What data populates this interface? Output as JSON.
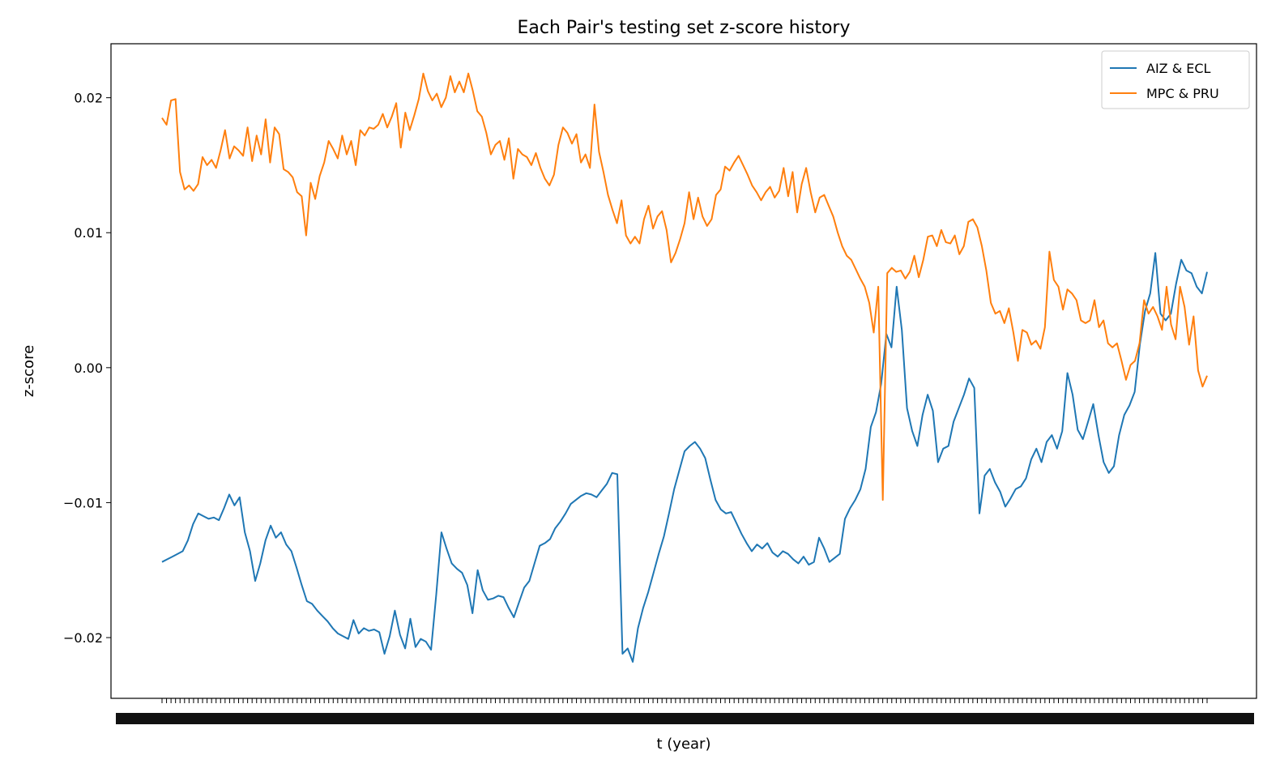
{
  "chart_data": {
    "type": "line",
    "title": "Each Pair's testing set z-score history",
    "xlabel": "t (year)",
    "ylabel": "z-score",
    "ylim": [
      -0.0245,
      0.024
    ],
    "yticks": [
      -0.02,
      -0.01,
      0.0,
      0.01,
      0.02
    ],
    "ytick_labels": [
      "−0.02",
      "−0.01",
      "0.00",
      "0.01",
      "0.02"
    ],
    "grid": false,
    "legend_position": "top-right",
    "series": [
      {
        "name": "AIZ & ECL",
        "color": "#1f77b4",
        "values": [
          -0.0144,
          -0.0142,
          -0.014,
          -0.0138,
          -0.0136,
          -0.0128,
          -0.0116,
          -0.0108,
          -0.011,
          -0.0112,
          -0.0111,
          -0.0113,
          -0.0104,
          -0.0094,
          -0.0102,
          -0.0096,
          -0.0122,
          -0.0136,
          -0.0158,
          -0.0145,
          -0.0128,
          -0.0117,
          -0.0126,
          -0.0122,
          -0.0131,
          -0.0136,
          -0.0148,
          -0.0161,
          -0.0173,
          -0.0175,
          -0.018,
          -0.0184,
          -0.0188,
          -0.0193,
          -0.0197,
          -0.0199,
          -0.0201,
          -0.0187,
          -0.0197,
          -0.0193,
          -0.0195,
          -0.0194,
          -0.0196,
          -0.0212,
          -0.0199,
          -0.018,
          -0.0198,
          -0.0208,
          -0.0186,
          -0.0207,
          -0.0201,
          -0.0203,
          -0.0209,
          -0.0168,
          -0.0122,
          -0.0134,
          -0.0145,
          -0.0149,
          -0.0152,
          -0.0161,
          -0.0182,
          -0.015,
          -0.0165,
          -0.0172,
          -0.0171,
          -0.0169,
          -0.017,
          -0.0178,
          -0.0185,
          -0.0174,
          -0.0163,
          -0.0158,
          -0.0145,
          -0.0132,
          -0.013,
          -0.0127,
          -0.0119,
          -0.0114,
          -0.0108,
          -0.0101,
          -0.0098,
          -0.0095,
          -0.0093,
          -0.0094,
          -0.0096,
          -0.0091,
          -0.0086,
          -0.0078,
          -0.0079,
          -0.0212,
          -0.0208,
          -0.0218,
          -0.0193,
          -0.0178,
          -0.0166,
          -0.0152,
          -0.0138,
          -0.0125,
          -0.0108,
          -0.009,
          -0.0076,
          -0.0062,
          -0.0058,
          -0.0055,
          -0.006,
          -0.0067,
          -0.0083,
          -0.0098,
          -0.0105,
          -0.0108,
          -0.0107,
          -0.0115,
          -0.0123,
          -0.013,
          -0.0136,
          -0.0131,
          -0.0134,
          -0.013,
          -0.0137,
          -0.014,
          -0.0136,
          -0.0138,
          -0.0142,
          -0.0145,
          -0.014,
          -0.0146,
          -0.0144,
          -0.0126,
          -0.0134,
          -0.0144,
          -0.0141,
          -0.0138,
          -0.0112,
          -0.0104,
          -0.0098,
          -0.009,
          -0.0075,
          -0.0044,
          -0.0033,
          -0.0012,
          0.0025,
          0.0015,
          0.006,
          0.0028,
          -0.003,
          -0.0047,
          -0.0058,
          -0.0035,
          -0.002,
          -0.0032,
          -0.007,
          -0.006,
          -0.0058,
          -0.004,
          -0.003,
          -0.002,
          -0.0008,
          -0.0015,
          -0.0108,
          -0.008,
          -0.0075,
          -0.0085,
          -0.0092,
          -0.0103,
          -0.0097,
          -0.009,
          -0.0088,
          -0.0082,
          -0.0068,
          -0.006,
          -0.007,
          -0.0055,
          -0.005,
          -0.006,
          -0.0047,
          -0.0004,
          -0.002,
          -0.0046,
          -0.0053,
          -0.004,
          -0.0027,
          -0.005,
          -0.007,
          -0.0078,
          -0.0073,
          -0.005,
          -0.0035,
          -0.0028,
          -0.0018,
          0.0017,
          0.0042,
          0.0055,
          0.0085,
          0.004,
          0.0035,
          0.004,
          0.0062,
          0.008,
          0.0072,
          0.007,
          0.006,
          0.0055,
          0.0071
        ]
      },
      {
        "name": "MPC & PRU",
        "color": "#ff7f0e",
        "values": [
          0.0185,
          0.018,
          0.0198,
          0.0199,
          0.0145,
          0.0132,
          0.0135,
          0.0131,
          0.0136,
          0.0156,
          0.015,
          0.0154,
          0.0148,
          0.0161,
          0.0176,
          0.0155,
          0.0164,
          0.0161,
          0.0157,
          0.0178,
          0.0153,
          0.0172,
          0.0158,
          0.0184,
          0.0152,
          0.0178,
          0.0173,
          0.0147,
          0.0145,
          0.0141,
          0.013,
          0.0127,
          0.0098,
          0.0137,
          0.0125,
          0.0142,
          0.0152,
          0.0168,
          0.0162,
          0.0155,
          0.0172,
          0.0158,
          0.0168,
          0.015,
          0.0176,
          0.0172,
          0.0178,
          0.0177,
          0.018,
          0.0188,
          0.0178,
          0.0186,
          0.0196,
          0.0163,
          0.0189,
          0.0176,
          0.0187,
          0.0199,
          0.0218,
          0.0205,
          0.0198,
          0.0203,
          0.0193,
          0.02,
          0.0216,
          0.0204,
          0.0212,
          0.0204,
          0.0218,
          0.0205,
          0.019,
          0.0186,
          0.0174,
          0.0158,
          0.0165,
          0.0168,
          0.0154,
          0.017,
          0.014,
          0.0162,
          0.0158,
          0.0156,
          0.015,
          0.0159,
          0.0148,
          0.014,
          0.0135,
          0.0143,
          0.0165,
          0.0178,
          0.0174,
          0.0166,
          0.0173,
          0.0152,
          0.0158,
          0.0148,
          0.0195,
          0.016,
          0.0145,
          0.0128,
          0.0117,
          0.0107,
          0.0124,
          0.0098,
          0.0092,
          0.0097,
          0.0092,
          0.011,
          0.012,
          0.0103,
          0.0112,
          0.0116,
          0.0102,
          0.0078,
          0.0085,
          0.0095,
          0.0107,
          0.013,
          0.011,
          0.0126,
          0.0112,
          0.0105,
          0.011,
          0.0128,
          0.0132,
          0.0149,
          0.0146,
          0.0152,
          0.0157,
          0.015,
          0.0143,
          0.0135,
          0.013,
          0.0124,
          0.013,
          0.0134,
          0.0126,
          0.0131,
          0.0148,
          0.0127,
          0.0145,
          0.0115,
          0.0136,
          0.0148,
          0.013,
          0.0115,
          0.0126,
          0.0128,
          0.012,
          0.0112,
          0.01,
          0.009,
          0.0083,
          0.008,
          0.0073,
          0.0066,
          0.006,
          0.0048,
          0.0026,
          0.006,
          -0.0098,
          0.007,
          0.0074,
          0.0071,
          0.0072,
          0.0066,
          0.0071,
          0.0083,
          0.0067,
          0.008,
          0.0097,
          0.0098,
          0.009,
          0.0102,
          0.0093,
          0.0092,
          0.0098,
          0.0084,
          0.009,
          0.0108,
          0.011,
          0.0104,
          0.009,
          0.0072,
          0.0048,
          0.004,
          0.0042,
          0.0033,
          0.0044,
          0.0026,
          0.0005,
          0.0028,
          0.0026,
          0.0017,
          0.002,
          0.0014,
          0.003,
          0.0086,
          0.0065,
          0.006,
          0.0043,
          0.0058,
          0.0055,
          0.005,
          0.0035,
          0.0033,
          0.0035,
          0.005,
          0.003,
          0.0035,
          0.0018,
          0.0015,
          0.0018,
          0.0005,
          -0.0009,
          0.0002,
          0.0005,
          0.0018,
          0.005,
          0.004,
          0.0045,
          0.0038,
          0.0028,
          0.006,
          0.0032,
          0.0021,
          0.006,
          0.0045,
          0.0017,
          0.0038,
          -0.0002,
          -0.0014,
          -0.0006
        ]
      }
    ]
  }
}
